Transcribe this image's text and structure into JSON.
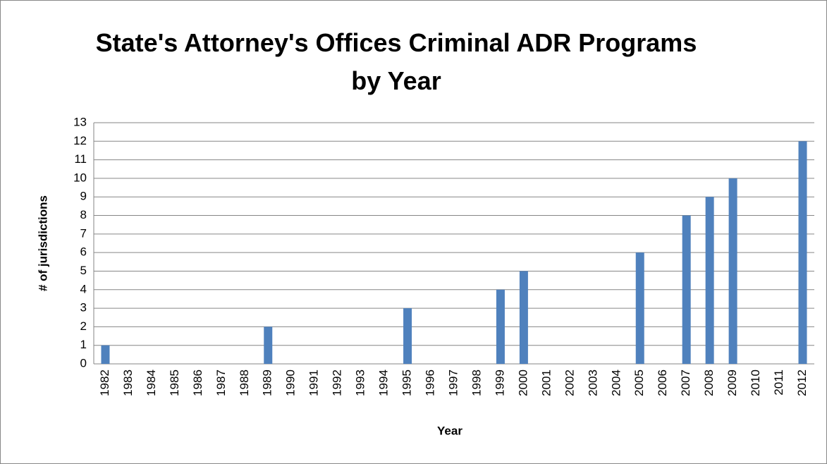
{
  "chart_data": {
    "type": "bar",
    "title": "State's Attorney's Offices Criminal ADR Programs by Year",
    "x_label": "Year",
    "y_label": "# of jurisdictions",
    "categories": [
      "1982",
      "1983",
      "1984",
      "1985",
      "1986",
      "1987",
      "1988",
      "1989",
      "1990",
      "1991",
      "1992",
      "1993",
      "1994",
      "1995",
      "1996",
      "1997",
      "1998",
      "1999",
      "2000",
      "2001",
      "2002",
      "2003",
      "2004",
      "2005",
      "2006",
      "2007",
      "2008",
      "2009",
      "2010",
      "2011",
      "2012"
    ],
    "values": [
      1,
      0,
      0,
      0,
      0,
      0,
      0,
      2,
      0,
      0,
      0,
      0,
      0,
      3,
      0,
      0,
      0,
      4,
      5,
      0,
      0,
      0,
      0,
      6,
      0,
      8,
      9,
      10,
      0,
      0,
      12
    ],
    "color": "#4f81bd",
    "ylim": [
      0,
      13
    ],
    "yticks": [
      0,
      1,
      2,
      3,
      4,
      5,
      6,
      7,
      8,
      9,
      10,
      11,
      12,
      13
    ],
    "grid": true
  }
}
